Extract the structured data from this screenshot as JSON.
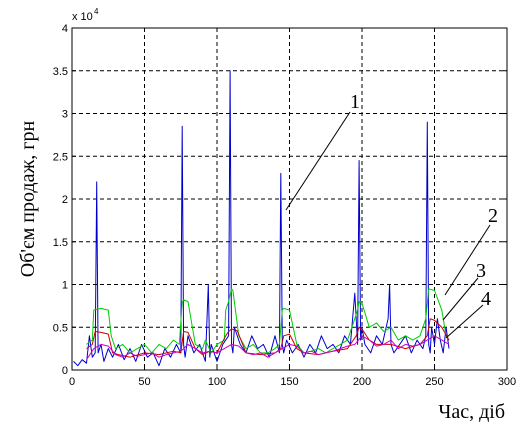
{
  "chart_data": {
    "type": "line",
    "title": "",
    "xlabel": "Час, діб",
    "ylabel": "Об'єм продаж, грн",
    "xlim": [
      0,
      300
    ],
    "ylim": [
      0,
      4
    ],
    "y_multiplier_label": "x 10",
    "y_multiplier_exponent": "4",
    "x_ticks": [
      "0",
      "50",
      "100",
      "150",
      "200",
      "250",
      "300"
    ],
    "y_ticks": [
      "0",
      "0.5",
      "1",
      "1.5",
      "2",
      "2.5",
      "3",
      "3.5",
      "4"
    ],
    "grid": true,
    "annotations": [
      "1",
      "2",
      "3",
      "4"
    ],
    "series": [
      {
        "color": "#0000cc",
        "x": [
          1,
          4,
          7,
          10,
          12,
          14,
          16,
          17,
          18,
          20,
          22,
          25,
          28,
          32,
          36,
          40,
          44,
          48,
          52,
          56,
          60,
          64,
          68,
          72,
          75,
          76,
          77,
          78,
          80,
          84,
          88,
          92,
          94,
          95,
          96,
          98,
          100,
          104,
          108,
          109,
          110,
          111,
          112,
          116,
          120,
          124,
          128,
          132,
          136,
          140,
          143,
          144,
          145,
          146,
          148,
          152,
          156,
          160,
          164,
          168,
          172,
          176,
          180,
          184,
          188,
          192,
          195,
          197,
          198,
          199,
          200,
          202,
          206,
          210,
          214,
          218,
          219,
          220,
          222,
          226,
          230,
          234,
          238,
          242,
          244,
          245,
          246,
          247,
          248,
          250,
          252,
          254,
          256,
          258,
          260
        ],
        "y": [
          0.1,
          0.05,
          0.12,
          0.08,
          0.4,
          0.15,
          0.2,
          2.2,
          0.2,
          0.3,
          0.1,
          0.25,
          0.15,
          0.3,
          0.12,
          0.25,
          0.1,
          0.3,
          0.15,
          0.2,
          0.05,
          0.25,
          0.15,
          0.3,
          0.2,
          2.85,
          0.3,
          0.15,
          0.4,
          0.2,
          0.3,
          0.1,
          1.0,
          0.15,
          0.3,
          0.2,
          0.1,
          0.3,
          0.4,
          3.5,
          0.3,
          0.2,
          0.5,
          0.3,
          0.2,
          0.4,
          0.25,
          0.3,
          0.15,
          0.4,
          0.2,
          2.3,
          0.3,
          0.2,
          0.35,
          0.2,
          0.3,
          0.15,
          0.3,
          0.2,
          0.4,
          0.25,
          0.3,
          0.2,
          0.4,
          0.3,
          0.9,
          0.3,
          2.45,
          0.35,
          0.5,
          0.3,
          0.2,
          0.4,
          0.3,
          0.6,
          1.0,
          0.3,
          0.2,
          0.3,
          0.4,
          0.2,
          0.35,
          0.25,
          0.4,
          2.9,
          0.3,
          0.2,
          0.5,
          0.3,
          0.6,
          0.35,
          0.2,
          0.5,
          0.25
        ]
      },
      {
        "color": "#00cc00",
        "x": [
          10,
          14,
          15,
          20,
          25,
          27,
          30,
          35,
          40,
          45,
          50,
          55,
          60,
          65,
          70,
          74,
          76,
          77,
          80,
          85,
          90,
          92,
          96,
          100,
          105,
          106,
          108,
          110,
          111,
          115,
          120,
          125,
          130,
          135,
          140,
          143,
          145,
          146,
          150,
          155,
          160,
          165,
          170,
          175,
          180,
          185,
          190,
          195,
          197,
          198,
          200,
          205,
          210,
          215,
          220,
          225,
          230,
          235,
          240,
          244,
          246,
          250,
          255,
          258,
          260
        ],
        "y": [
          0.3,
          0.35,
          0.7,
          0.72,
          0.7,
          0.4,
          0.25,
          0.3,
          0.2,
          0.25,
          0.3,
          0.2,
          0.3,
          0.25,
          0.35,
          0.3,
          0.8,
          0.82,
          0.8,
          0.3,
          0.25,
          0.35,
          0.2,
          0.3,
          0.35,
          0.7,
          0.8,
          0.95,
          0.93,
          0.4,
          0.25,
          0.3,
          0.2,
          0.2,
          0.25,
          0.3,
          0.7,
          0.72,
          0.7,
          0.3,
          0.2,
          0.22,
          0.25,
          0.2,
          0.25,
          0.3,
          0.35,
          0.6,
          0.7,
          0.8,
          0.78,
          0.5,
          0.55,
          0.45,
          0.5,
          0.35,
          0.4,
          0.35,
          0.4,
          0.6,
          0.95,
          0.93,
          0.7,
          0.4,
          0.35
        ]
      },
      {
        "color": "#cc0000",
        "x": [
          10,
          14,
          16,
          20,
          25,
          28,
          32,
          40,
          50,
          60,
          70,
          75,
          77,
          80,
          85,
          90,
          95,
          100,
          106,
          108,
          110,
          114,
          120,
          130,
          140,
          144,
          146,
          150,
          155,
          160,
          170,
          180,
          190,
          196,
          198,
          200,
          205,
          210,
          220,
          230,
          240,
          245,
          247,
          250,
          255,
          260
        ],
        "y": [
          0.25,
          0.3,
          0.45,
          0.44,
          0.42,
          0.2,
          0.18,
          0.15,
          0.2,
          0.18,
          0.22,
          0.2,
          0.45,
          0.44,
          0.25,
          0.18,
          0.22,
          0.2,
          0.4,
          0.45,
          0.48,
          0.46,
          0.2,
          0.18,
          0.2,
          0.25,
          0.4,
          0.42,
          0.25,
          0.2,
          0.18,
          0.22,
          0.25,
          0.4,
          0.5,
          0.48,
          0.35,
          0.3,
          0.3,
          0.25,
          0.3,
          0.4,
          0.6,
          0.58,
          0.5,
          0.35
        ]
      },
      {
        "color": "#cc00cc",
        "x": [
          10,
          15,
          20,
          25,
          30,
          35,
          40,
          45,
          50,
          55,
          60,
          65,
          70,
          75,
          80,
          85,
          90,
          95,
          100,
          105,
          110,
          115,
          120,
          125,
          130,
          135,
          140,
          145,
          150,
          155,
          160,
          165,
          170,
          175,
          180,
          185,
          190,
          195,
          200,
          205,
          210,
          215,
          220,
          225,
          230,
          235,
          240,
          245,
          250,
          255,
          260
        ],
        "y": [
          0.12,
          0.25,
          0.3,
          0.28,
          0.18,
          0.15,
          0.2,
          0.16,
          0.18,
          0.2,
          0.15,
          0.18,
          0.2,
          0.22,
          0.3,
          0.25,
          0.2,
          0.22,
          0.2,
          0.25,
          0.3,
          0.28,
          0.2,
          0.18,
          0.2,
          0.15,
          0.2,
          0.25,
          0.3,
          0.28,
          0.2,
          0.22,
          0.18,
          0.2,
          0.22,
          0.25,
          0.28,
          0.3,
          0.4,
          0.35,
          0.28,
          0.3,
          0.35,
          0.25,
          0.3,
          0.28,
          0.3,
          0.35,
          0.4,
          0.35,
          0.3
        ]
      }
    ]
  }
}
